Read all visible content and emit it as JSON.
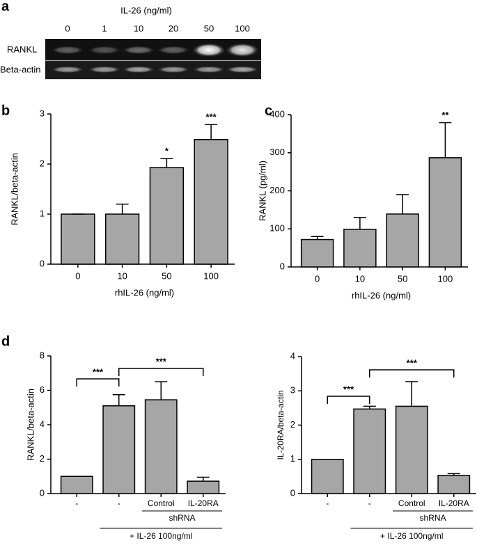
{
  "gel": {
    "label": "a",
    "title": "IL-26 (ng/ml)",
    "lanes": [
      "0",
      "1",
      "10",
      "20",
      "50",
      "100"
    ],
    "rows": [
      "RANKL",
      "Beta-actin"
    ]
  },
  "chart_data": [
    {
      "type": "bar",
      "label": "b",
      "xlabel": "rhIL-26 (ng/ml)",
      "ylabel": "RANKL/beta-actin",
      "color": "#a6a6a6",
      "categories": [
        "0",
        "10",
        "50",
        "100"
      ],
      "values": [
        1,
        1,
        1.93,
        2.49
      ],
      "errors": [
        0,
        0.2,
        0.18,
        0.3
      ],
      "significance": [
        null,
        null,
        "*",
        "***"
      ],
      "ylim": [
        0,
        3
      ],
      "yticks": [
        0,
        1,
        2,
        3
      ]
    },
    {
      "type": "bar",
      "label": "c",
      "xlabel": "rhIL-26 (ng/ml)",
      "ylabel": "RANKL (pg/ml)",
      "color": "#a6a6a6",
      "categories": [
        "0",
        "10",
        "50",
        "100"
      ],
      "values": [
        72,
        99,
        139,
        287
      ],
      "errors": [
        8,
        31,
        51,
        92
      ],
      "significance": [
        null,
        null,
        null,
        "**"
      ],
      "ylim": [
        0,
        400
      ],
      "yticks": [
        0,
        100,
        200,
        300,
        400
      ]
    },
    {
      "type": "bar",
      "label": "d",
      "ylabel": "RANKL/beta-actin",
      "color": "#a6a6a6",
      "categories": [
        "-",
        "-",
        "Control",
        "IL-20RA"
      ],
      "values": [
        1,
        5.1,
        5.45,
        0.72
      ],
      "errors": [
        0,
        0.65,
        1.05,
        0.23
      ],
      "annotations": [
        "***",
        "***"
      ],
      "group_label": "shRNA",
      "treatment": "+ IL-26 100ng/ml",
      "ylim": [
        0,
        8
      ],
      "yticks": [
        0,
        2,
        4,
        6,
        8
      ]
    },
    {
      "type": "bar",
      "ylabel": "IL-20RA/beta-actin",
      "color": "#a6a6a6",
      "categories": [
        "-",
        "-",
        "Control",
        "IL-20RA"
      ],
      "values": [
        1,
        2.47,
        2.55,
        0.53
      ],
      "errors": [
        0,
        0.08,
        0.72,
        0.05
      ],
      "annotations": [
        "***",
        "***"
      ],
      "group_label": "shRNA",
      "treatment": "+ IL-26 100ng/ml",
      "ylim": [
        0,
        4
      ],
      "yticks": [
        0,
        1,
        2,
        3,
        4
      ]
    }
  ]
}
